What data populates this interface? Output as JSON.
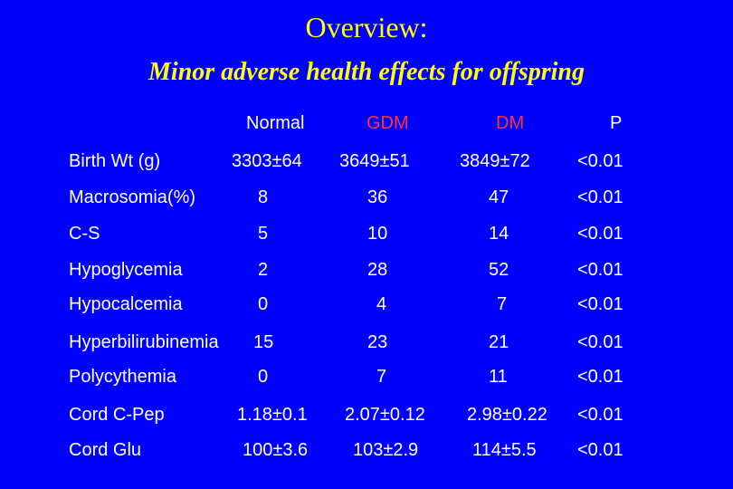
{
  "title": "Overview:",
  "subtitle": "Minor adverse health effects for offspring",
  "headers": {
    "normal": "Normal",
    "gdm": "GDM",
    "dm": "DM",
    "p": "P"
  },
  "rows": [
    {
      "label": "Birth Wt (g)",
      "normal": "3303±64",
      "gdm": "3649±51",
      "dm": "3849±72",
      "p": "<0.01"
    },
    {
      "label": "Macrosomia(%)",
      "normal": "8",
      "gdm": "36",
      "dm": "47",
      "p": "<0.01"
    },
    {
      "label": "C-S",
      "normal": "5",
      "gdm": "10",
      "dm": "14",
      "p": "<0.01"
    },
    {
      "label": "Hypoglycemia",
      "normal": "2",
      "gdm": "28",
      "dm": "52",
      "p": "<0.01"
    },
    {
      "label": "Hypocalcemia",
      "normal": "0",
      "gdm": "4",
      "dm": "7",
      "p": "<0.01"
    },
    {
      "label": "Hyperbilirubinemia",
      "normal": "15",
      "gdm": "23",
      "dm": "21",
      "p": "<0.01"
    },
    {
      "label": "Polycythemia",
      "normal": "0",
      "gdm": "7",
      "dm": "11",
      "p": "<0.01"
    },
    {
      "label": "Cord C-Pep",
      "normal": "1.18±0.1",
      "gdm": "2.07±0.12",
      "dm": "2.98±0.22",
      "p": "<0.01"
    },
    {
      "label": "Cord Glu",
      "normal": "100±3.6",
      "gdm": "103±2.9",
      "dm": "114±5.5",
      "p": "<0.01"
    }
  ],
  "colors": {
    "background": "#0000ff",
    "title": "#ffff00",
    "header_red": "#ff3333",
    "text": "#ffffff"
  }
}
